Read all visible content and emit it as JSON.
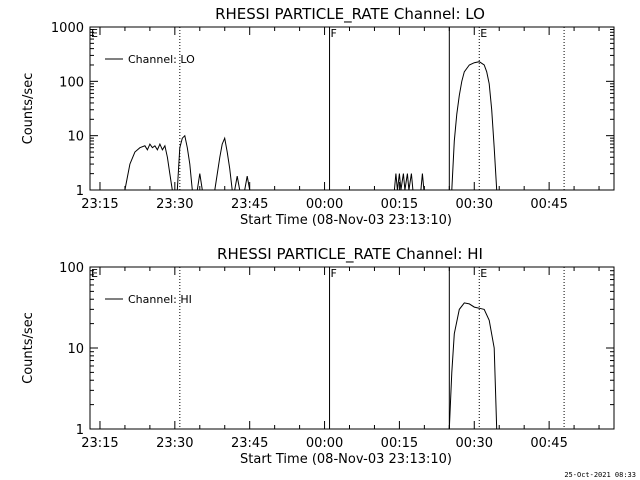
{
  "footer": {
    "timestamp": "25-Oct-2021 08:33"
  },
  "chart_data": [
    {
      "type": "line",
      "title": "RHESSI PARTICLE_RATE Channel: LO",
      "xlabel": "Start Time (08-Nov-03 23:13:10)",
      "ylabel": "Counts/sec",
      "x_range": [
        "23:13",
        "00:58"
      ],
      "x_ticks": [
        "23:15",
        "23:30",
        "23:45",
        "00:00",
        "00:15",
        "00:30",
        "00:45"
      ],
      "ylim": [
        1,
        1000
      ],
      "yscale": "log",
      "y_ticks": [
        "1",
        "10",
        "100",
        "1000"
      ],
      "legend": {
        "position": "top-left",
        "entries": [
          "Channel: LO"
        ]
      },
      "markers": [
        {
          "time": "23:13",
          "label": "E",
          "style": "dotted"
        },
        {
          "time": "23:31",
          "label": "",
          "style": "dotted"
        },
        {
          "time": "00:01",
          "label": "F",
          "style": "solid"
        },
        {
          "time": "00:25",
          "label": "",
          "style": "solid"
        },
        {
          "time": "00:31",
          "label": "E",
          "style": "dotted"
        },
        {
          "time": "00:48",
          "label": "",
          "style": "dotted"
        }
      ],
      "series": [
        {
          "name": "Channel: LO",
          "segments": [
            [
              [
                "23:20",
                1
              ],
              [
                "23:21",
                3
              ],
              [
                "23:22",
                5
              ],
              [
                "23:23",
                6
              ],
              [
                "23:24",
                6.5
              ],
              [
                "23:24.5",
                5.5
              ],
              [
                "23:25",
                7
              ],
              [
                "23:25.5",
                6
              ],
              [
                "23:26",
                6.5
              ],
              [
                "23:26.5",
                5.5
              ],
              [
                "23:27",
                7
              ],
              [
                "23:27.5",
                5.5
              ],
              [
                "23:28",
                6.5
              ],
              [
                "23:28.5",
                4
              ],
              [
                "23:29",
                2
              ],
              [
                "23:29.5",
                1
              ]
            ],
            [
              [
                "23:30.5",
                1
              ],
              [
                "23:31",
                6
              ],
              [
                "23:31.5",
                9
              ],
              [
                "23:32",
                10
              ],
              [
                "23:32.5",
                6
              ],
              [
                "23:33",
                3
              ],
              [
                "23:33.5",
                1
              ]
            ],
            [
              [
                "23:34.5",
                1
              ],
              [
                "23:35",
                2
              ],
              [
                "23:35.5",
                1
              ]
            ],
            [
              [
                "23:38",
                1
              ],
              [
                "23:39",
                4
              ],
              [
                "23:39.5",
                7
              ],
              [
                "23:40",
                9
              ],
              [
                "23:40.5",
                5
              ],
              [
                "23:41",
                2.5
              ],
              [
                "23:41.5",
                1
              ]
            ],
            [
              [
                "23:42",
                1
              ],
              [
                "23:42.5",
                1.8
              ],
              [
                "23:43",
                1
              ]
            ],
            [
              [
                "23:44",
                1
              ],
              [
                "23:44.5",
                1.8
              ],
              [
                "23:45",
                1
              ]
            ],
            [
              [
                "00:14",
                1
              ],
              [
                "00:14.3",
                2
              ],
              [
                "00:14.6",
                1
              ],
              [
                "00:15",
                2
              ],
              [
                "00:15.3",
                1
              ],
              [
                "00:15.8",
                2
              ],
              [
                "00:16.1",
                1
              ],
              [
                "00:16.6",
                2
              ],
              [
                "00:16.9",
                1
              ],
              [
                "00:17.4",
                2
              ],
              [
                "00:17.7",
                1
              ]
            ],
            [
              [
                "00:19.3",
                1
              ],
              [
                "00:19.6",
                2
              ],
              [
                "00:19.9",
                1
              ]
            ],
            [
              [
                "00:25.5",
                1
              ],
              [
                "00:26",
                8
              ],
              [
                "00:26.5",
                25
              ],
              [
                "00:27",
                55
              ],
              [
                "00:27.5",
                100
              ],
              [
                "00:28",
                150
              ],
              [
                "00:29",
                200
              ],
              [
                "00:30",
                220
              ],
              [
                "00:31",
                230
              ],
              [
                "00:32",
                200
              ],
              [
                "00:32.5",
                150
              ],
              [
                "00:33",
                90
              ],
              [
                "00:33.5",
                30
              ],
              [
                "00:34",
                6
              ],
              [
                "00:34.5",
                1
              ]
            ]
          ]
        }
      ]
    },
    {
      "type": "line",
      "title": "RHESSI PARTICLE_RATE Channel: HI",
      "xlabel": "Start Time (08-Nov-03 23:13:10)",
      "ylabel": "Counts/sec",
      "x_range": [
        "23:13",
        "00:58"
      ],
      "x_ticks": [
        "23:15",
        "23:30",
        "23:45",
        "00:00",
        "00:15",
        "00:30",
        "00:45"
      ],
      "ylim": [
        1,
        100
      ],
      "yscale": "log",
      "y_ticks": [
        "1",
        "10",
        "100"
      ],
      "legend": {
        "position": "top-left",
        "entries": [
          "Channel: HI"
        ]
      },
      "markers": [
        {
          "time": "23:13",
          "label": "E",
          "style": "dotted"
        },
        {
          "time": "23:31",
          "label": "",
          "style": "dotted"
        },
        {
          "time": "00:01",
          "label": "F",
          "style": "solid"
        },
        {
          "time": "00:25",
          "label": "",
          "style": "solid"
        },
        {
          "time": "00:31",
          "label": "E",
          "style": "dotted"
        },
        {
          "time": "00:48",
          "label": "",
          "style": "dotted"
        }
      ],
      "series": [
        {
          "name": "Channel: HI",
          "segments": [
            [
              [
                "00:25",
                1
              ],
              [
                "00:25.5",
                5
              ],
              [
                "00:26",
                15
              ],
              [
                "00:27",
                30
              ],
              [
                "00:28",
                36
              ],
              [
                "00:29",
                35
              ],
              [
                "00:30",
                32
              ],
              [
                "00:31",
                31
              ],
              [
                "00:32",
                30
              ],
              [
                "00:33",
                22
              ],
              [
                "00:34",
                10
              ],
              [
                "00:34.5",
                1
              ]
            ]
          ]
        }
      ]
    }
  ]
}
